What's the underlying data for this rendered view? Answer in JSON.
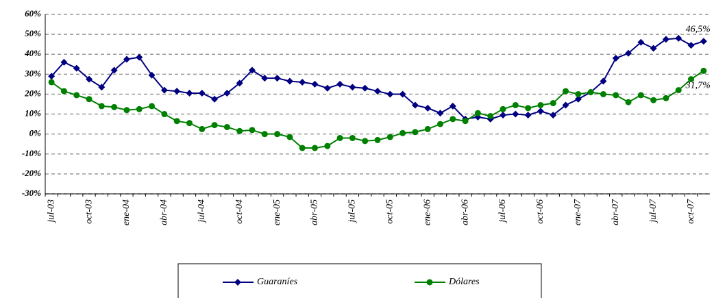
{
  "chart_data": {
    "type": "line",
    "categories": [
      "jul-03",
      null,
      null,
      "oct-03",
      null,
      null,
      "ene-04",
      null,
      null,
      "abr-04",
      null,
      null,
      "jul-04",
      null,
      null,
      "oct-04",
      null,
      null,
      "ene-05",
      null,
      null,
      "abr-05",
      null,
      null,
      "jul-05",
      null,
      null,
      "oct-05",
      null,
      null,
      "ene-06",
      null,
      null,
      "abr-06",
      null,
      null,
      "jul-06",
      null,
      null,
      "oct-06",
      null,
      null,
      "ene-07",
      null,
      null,
      "abr-07",
      null,
      null,
      "jul-07",
      null,
      null,
      "oct-07",
      null
    ],
    "series": [
      {
        "name": "Guaraníes",
        "color": "#000080",
        "marker": "diamond",
        "values": [
          29,
          36,
          33,
          27.5,
          23.5,
          32,
          37.5,
          38.5,
          29.5,
          22,
          21.5,
          20.5,
          20.5,
          17.5,
          20.5,
          25.5,
          32,
          28,
          28,
          26.5,
          26,
          25,
          23,
          25,
          23.5,
          23,
          21.5,
          20,
          20,
          14.5,
          13,
          10.5,
          14,
          7.5,
          8.5,
          7.5,
          9.5,
          10,
          9.5,
          11.5,
          9.5,
          14.5,
          17.5,
          21,
          26.5,
          38,
          40.5,
          46,
          43,
          47.5,
          48,
          44.5,
          46.5
        ]
      },
      {
        "name": "Dólares",
        "color": "#008000",
        "marker": "circle",
        "values": [
          26,
          21.5,
          19.5,
          17.5,
          14,
          13.5,
          12,
          12.5,
          14,
          10,
          6.5,
          5.5,
          2.5,
          4.5,
          3.5,
          1.5,
          2,
          0,
          0,
          -1.5,
          -7,
          -7,
          -6,
          -2,
          -2,
          -3.5,
          -3,
          -1.5,
          0.5,
          1,
          2.5,
          5,
          7.5,
          6.5,
          10.5,
          9,
          12.5,
          14.5,
          13,
          14.5,
          15.5,
          21.5,
          20,
          21,
          20,
          19.5,
          16,
          19.5,
          17,
          18,
          22,
          27.5,
          31.7
        ]
      }
    ],
    "annotations": [
      {
        "text": "46,5%",
        "series": 0
      },
      {
        "text": "31,7%",
        "series": 1
      }
    ],
    "ylim": [
      -30,
      60
    ],
    "yticks": [
      {
        "value": -30,
        "label": "-30%"
      },
      {
        "value": -20,
        "label": "-20%"
      },
      {
        "value": -10,
        "label": "-10%"
      },
      {
        "value": 0,
        "label": "0%"
      },
      {
        "value": 10,
        "label": "10%"
      },
      {
        "value": 20,
        "label": "20%"
      },
      {
        "value": 30,
        "label": "30%"
      },
      {
        "value": 40,
        "label": "40%"
      },
      {
        "value": 50,
        "label": "50%"
      },
      {
        "value": 60,
        "label": "60%"
      }
    ],
    "grid": true,
    "legend": "bottom"
  }
}
